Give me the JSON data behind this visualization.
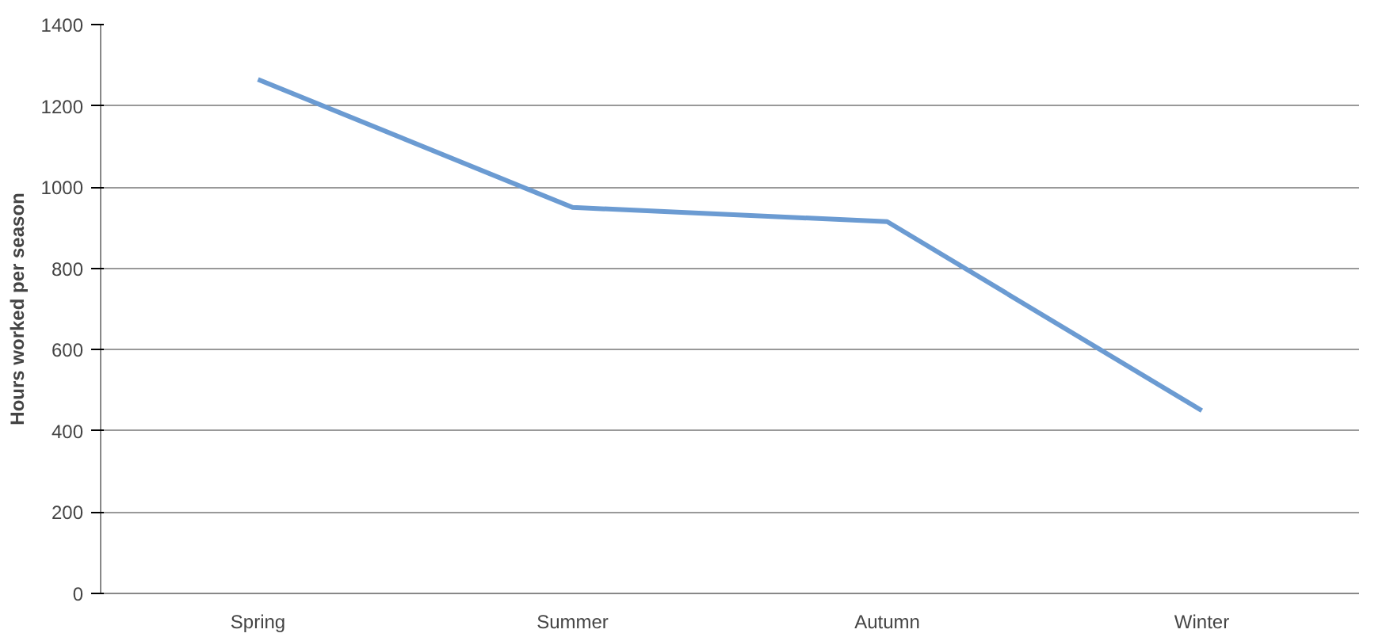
{
  "chart_data": {
    "type": "line",
    "ylabel": "Hours worked per season",
    "categories": [
      "Spring",
      "Summer",
      "Autumn",
      "Winter"
    ],
    "series": [
      {
        "color": "#6b9bd2",
        "values": [
          1265,
          950,
          915,
          450
        ]
      }
    ],
    "ylim": [
      0,
      1400
    ],
    "yticks": [
      0,
      200,
      400,
      600,
      800,
      1000,
      1200,
      1400
    ],
    "grid": "y",
    "marker": "none",
    "line_style": "solid"
  }
}
